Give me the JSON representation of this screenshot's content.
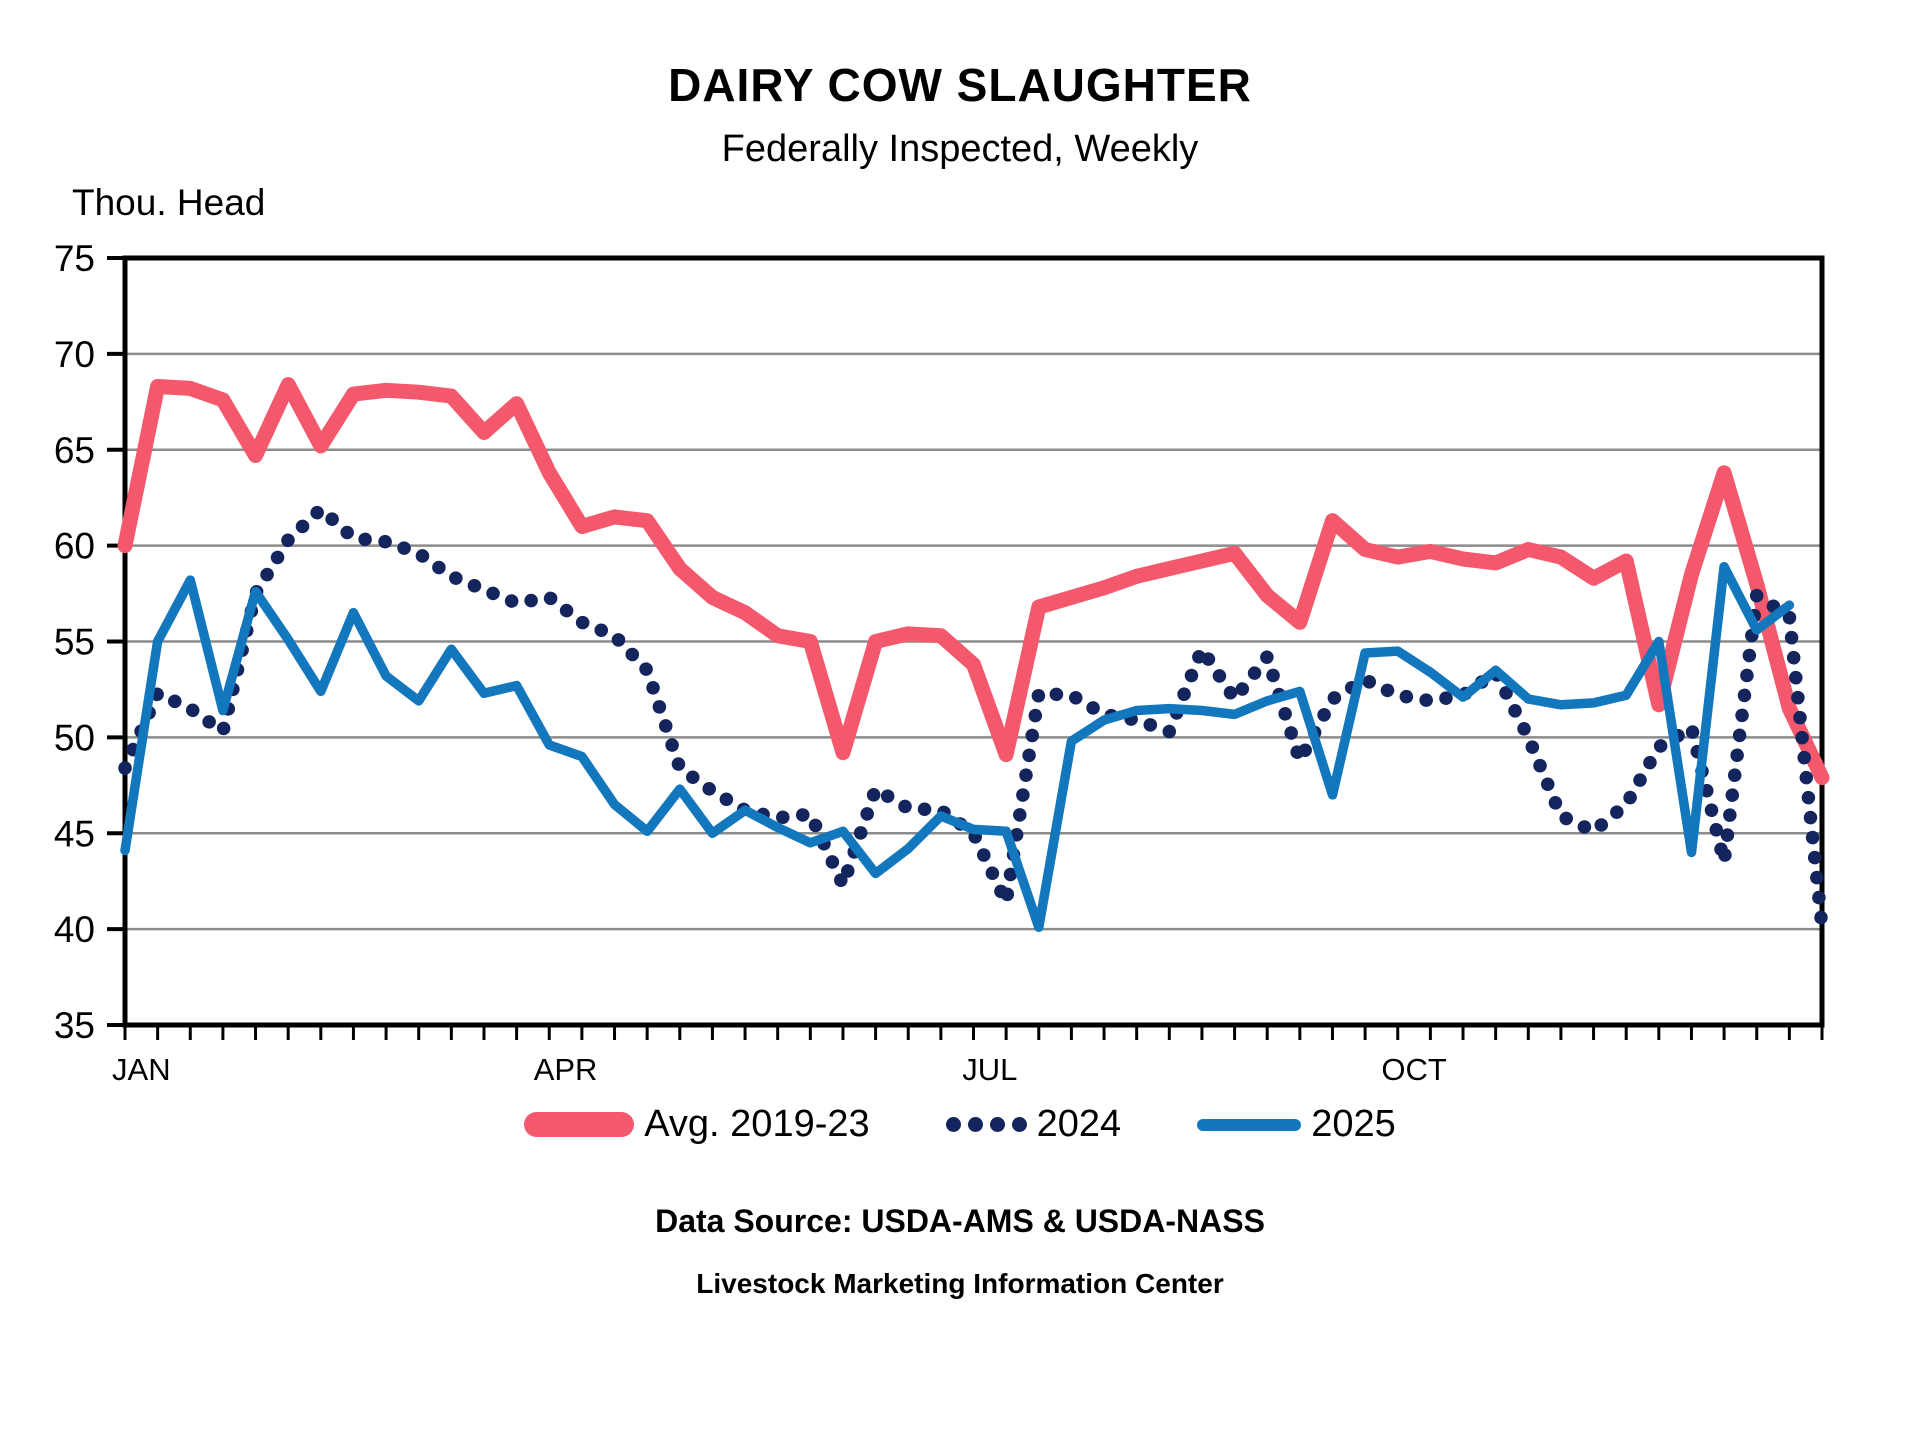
{
  "title": "DAIRY COW SLAUGHTER",
  "subtitle": "Federally Inspected, Weekly",
  "footer": {
    "source": "Data Source:  USDA-AMS & USDA-NASS",
    "org": "Livestock Marketing Information Center"
  },
  "colors": {
    "avg": "#F4586C",
    "y2024": "#13255C",
    "y2025": "#1377BD",
    "grid": "#8C8C8C",
    "axis": "#000000"
  },
  "chart_data": {
    "type": "line",
    "title": "DAIRY COW SLAUGHTER",
    "subtitle": "Federally Inspected, Weekly",
    "ylabel": "Thou. Head",
    "xlabel": "",
    "grid": "horizontal",
    "legend_position": "bottom",
    "ylim": [
      35,
      75
    ],
    "y_ticks": [
      35,
      40,
      45,
      50,
      55,
      60,
      65,
      70,
      75
    ],
    "x_unit": "week",
    "weeks_total": 53,
    "month_labels": [
      {
        "label": "JAN",
        "week": 1
      },
      {
        "label": "APR",
        "week": 14
      },
      {
        "label": "JUL",
        "week": 27
      },
      {
        "label": "OCT",
        "week": 40
      }
    ],
    "series": [
      {
        "name": "Avg. 2019-23",
        "style": "thick-solid",
        "color": "#F4586C",
        "values": [
          60.0,
          68.3,
          68.2,
          67.6,
          64.7,
          68.4,
          65.2,
          67.9,
          68.1,
          68.0,
          67.8,
          65.9,
          67.4,
          63.8,
          61.0,
          61.5,
          61.3,
          58.8,
          57.3,
          56.5,
          55.3,
          55.0,
          49.2,
          55.0,
          55.4,
          55.3,
          53.8,
          49.1,
          56.8,
          57.3,
          57.8,
          58.4,
          58.8,
          59.2,
          59.6,
          57.4,
          56.0,
          61.3,
          59.8,
          59.4,
          59.7,
          59.3,
          59.1,
          59.8,
          59.4,
          58.3,
          59.2,
          51.7,
          58.5,
          63.8,
          58.0,
          51.5,
          47.9
        ]
      },
      {
        "name": "2024",
        "style": "dotted",
        "color": "#13255C",
        "values": [
          48.4,
          52.3,
          51.5,
          50.3,
          57.5,
          60.3,
          61.9,
          60.4,
          60.2,
          59.6,
          58.4,
          57.7,
          57.0,
          57.3,
          56.0,
          55.3,
          53.5,
          48.4,
          47.2,
          46.2,
          45.8,
          46.0,
          42.3,
          47.3,
          46.3,
          46.2,
          45.0,
          41.4,
          52.3,
          52.2,
          51.2,
          50.9,
          50.3,
          54.6,
          52.0,
          54.2,
          48.8,
          52.0,
          53.0,
          52.2,
          51.9,
          52.2,
          53.4,
          50.0,
          45.9,
          45.1,
          46.5,
          49.5,
          50.5,
          43.5,
          57.4,
          56.3,
          40.1
        ]
      },
      {
        "name": "2025",
        "style": "solid",
        "color": "#1377BD",
        "values": [
          44.1,
          55.0,
          58.2,
          51.4,
          57.6,
          55.1,
          52.4,
          56.5,
          53.2,
          51.9,
          54.6,
          52.3,
          52.7,
          49.6,
          49.0,
          46.5,
          45.1,
          47.3,
          45.0,
          46.2,
          45.3,
          44.5,
          45.1,
          42.9,
          44.2,
          45.9,
          45.2,
          45.1,
          40.1,
          49.8,
          50.9,
          51.4,
          51.5,
          51.4,
          51.2,
          51.9,
          52.4,
          47.0,
          54.4,
          54.5,
          53.4,
          52.1,
          53.5,
          52.0,
          51.7,
          51.8,
          52.2,
          55.0,
          44.0,
          58.9,
          55.6,
          56.9
        ]
      }
    ]
  }
}
